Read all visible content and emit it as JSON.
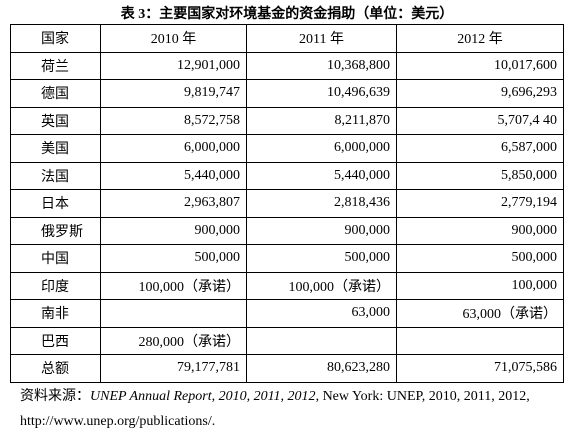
{
  "title": "表 3：主要国家对环境基金的资金捐助（单位：美元）",
  "table": {
    "header": [
      "国家",
      "2010 年",
      "2011 年",
      "2012 年"
    ],
    "rows": [
      [
        "荷兰",
        "12,901,000",
        "10,368,800",
        "10,017,600"
      ],
      [
        "德国",
        "9,819,747",
        "10,496,639",
        "9,696,293"
      ],
      [
        "英国",
        "8,572,758",
        "8,211,870",
        "5,707,4 40"
      ],
      [
        "美国",
        "6,000,000",
        "6,000,000",
        "6,587,000"
      ],
      [
        "法国",
        "5,440,000",
        "5,440,000",
        "5,850,000"
      ],
      [
        "日本",
        "2,963,807",
        "2,818,436",
        "2,779,194"
      ],
      [
        "俄罗斯",
        "900,000",
        "900,000",
        "900,000"
      ],
      [
        "中国",
        "500,000",
        "500,000",
        "500,000"
      ],
      [
        "印度",
        "100,000（承诺）",
        "100,000（承诺）",
        "100,000"
      ],
      [
        "南非",
        null,
        "63,000",
        "63,000（承诺）"
      ],
      [
        "巴西",
        "280,000（承诺）",
        null,
        null
      ],
      [
        "总额",
        "79,177,781",
        "80,623,280",
        "71,075,586"
      ]
    ]
  },
  "source": {
    "label": "资料来源：",
    "report": "UNEP Annual Report, 2010, 2011, 2012",
    "rest": ", New York: UNEP, 2010, 2011, 2012, http://www.unep.org/publications/."
  }
}
